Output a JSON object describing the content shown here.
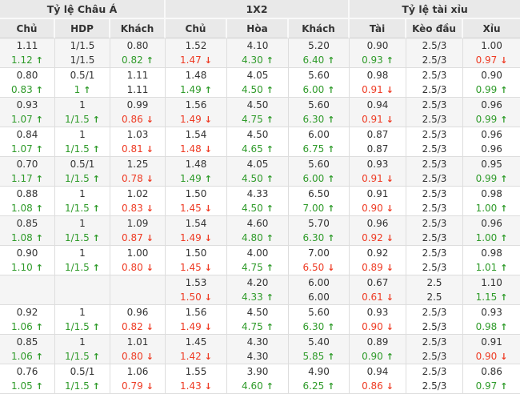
{
  "colors": {
    "up_green": "#2f9b2a",
    "down_red": "#ee3b24",
    "text": "#333333",
    "header_bg": "#e9e9e9",
    "alt_row_bg": "#f5f5f5",
    "border": "#dddddd"
  },
  "icons": {
    "up_arrow": "↑",
    "down_arrow": "↓"
  },
  "table": {
    "sections": [
      {
        "title": "Tỷ lệ Châu Á",
        "columns": [
          "Chủ",
          "HDP",
          "Khách"
        ]
      },
      {
        "title": "1X2",
        "columns": [
          "Chủ",
          "Hòa",
          "Khách"
        ]
      },
      {
        "title": "Tỷ lệ tài xỉu",
        "columns": [
          "Tài",
          "Kèo đầu",
          "Xỉu"
        ]
      }
    ],
    "rows": [
      {
        "cells": [
          {
            "top": "1.11",
            "bottom": "1.12",
            "trend": "up"
          },
          {
            "top": "1/1.5",
            "bottom": "1/1.5",
            "trend": "none"
          },
          {
            "top": "0.80",
            "bottom": "0.82",
            "trend": "up"
          },
          {
            "top": "1.52",
            "bottom": "1.47",
            "trend": "down"
          },
          {
            "top": "4.10",
            "bottom": "4.30",
            "trend": "up"
          },
          {
            "top": "5.20",
            "bottom": "6.40",
            "trend": "up"
          },
          {
            "top": "0.90",
            "bottom": "0.93",
            "trend": "up"
          },
          {
            "top": "2.5/3",
            "bottom": "2.5/3",
            "trend": "none"
          },
          {
            "top": "1.00",
            "bottom": "0.97",
            "trend": "down"
          }
        ]
      },
      {
        "cells": [
          {
            "top": "0.80",
            "bottom": "0.83",
            "trend": "up"
          },
          {
            "top": "0.5/1",
            "bottom": "1",
            "trend": "up"
          },
          {
            "top": "1.11",
            "bottom": "1.11",
            "trend": "none"
          },
          {
            "top": "1.48",
            "bottom": "1.49",
            "trend": "up"
          },
          {
            "top": "4.05",
            "bottom": "4.50",
            "trend": "up"
          },
          {
            "top": "5.60",
            "bottom": "6.00",
            "trend": "up"
          },
          {
            "top": "0.98",
            "bottom": "0.91",
            "trend": "down"
          },
          {
            "top": "2.5/3",
            "bottom": "2.5/3",
            "trend": "none"
          },
          {
            "top": "0.90",
            "bottom": "0.99",
            "trend": "up"
          }
        ]
      },
      {
        "cells": [
          {
            "top": "0.93",
            "bottom": "1.07",
            "trend": "up"
          },
          {
            "top": "1",
            "bottom": "1/1.5",
            "trend": "up"
          },
          {
            "top": "0.99",
            "bottom": "0.86",
            "trend": "down"
          },
          {
            "top": "1.56",
            "bottom": "1.49",
            "trend": "down"
          },
          {
            "top": "4.50",
            "bottom": "4.75",
            "trend": "up"
          },
          {
            "top": "5.60",
            "bottom": "6.30",
            "trend": "up"
          },
          {
            "top": "0.94",
            "bottom": "0.91",
            "trend": "down"
          },
          {
            "top": "2.5/3",
            "bottom": "2.5/3",
            "trend": "none"
          },
          {
            "top": "0.96",
            "bottom": "0.99",
            "trend": "up"
          }
        ]
      },
      {
        "cells": [
          {
            "top": "0.84",
            "bottom": "1.07",
            "trend": "up"
          },
          {
            "top": "1",
            "bottom": "1/1.5",
            "trend": "up"
          },
          {
            "top": "1.03",
            "bottom": "0.81",
            "trend": "down"
          },
          {
            "top": "1.54",
            "bottom": "1.48",
            "trend": "down"
          },
          {
            "top": "4.50",
            "bottom": "4.65",
            "trend": "up"
          },
          {
            "top": "6.00",
            "bottom": "6.75",
            "trend": "up"
          },
          {
            "top": "0.87",
            "bottom": "0.87",
            "trend": "none"
          },
          {
            "top": "2.5/3",
            "bottom": "2.5/3",
            "trend": "none"
          },
          {
            "top": "0.96",
            "bottom": "0.96",
            "trend": "none"
          }
        ]
      },
      {
        "cells": [
          {
            "top": "0.70",
            "bottom": "1.17",
            "trend": "up"
          },
          {
            "top": "0.5/1",
            "bottom": "1/1.5",
            "trend": "up"
          },
          {
            "top": "1.25",
            "bottom": "0.78",
            "trend": "down"
          },
          {
            "top": "1.48",
            "bottom": "1.49",
            "trend": "up"
          },
          {
            "top": "4.05",
            "bottom": "4.50",
            "trend": "up"
          },
          {
            "top": "5.60",
            "bottom": "6.00",
            "trend": "up"
          },
          {
            "top": "0.93",
            "bottom": "0.91",
            "trend": "down"
          },
          {
            "top": "2.5/3",
            "bottom": "2.5/3",
            "trend": "none"
          },
          {
            "top": "0.95",
            "bottom": "0.99",
            "trend": "up"
          }
        ]
      },
      {
        "cells": [
          {
            "top": "0.88",
            "bottom": "1.08",
            "trend": "up"
          },
          {
            "top": "1",
            "bottom": "1/1.5",
            "trend": "up"
          },
          {
            "top": "1.02",
            "bottom": "0.83",
            "trend": "down"
          },
          {
            "top": "1.50",
            "bottom": "1.45",
            "trend": "down"
          },
          {
            "top": "4.33",
            "bottom": "4.50",
            "trend": "up"
          },
          {
            "top": "6.50",
            "bottom": "7.00",
            "trend": "up"
          },
          {
            "top": "0.91",
            "bottom": "0.90",
            "trend": "down"
          },
          {
            "top": "2.5/3",
            "bottom": "2.5/3",
            "trend": "none"
          },
          {
            "top": "0.98",
            "bottom": "1.00",
            "trend": "up"
          }
        ]
      },
      {
        "cells": [
          {
            "top": "0.85",
            "bottom": "1.08",
            "trend": "up"
          },
          {
            "top": "1",
            "bottom": "1/1.5",
            "trend": "up"
          },
          {
            "top": "1.09",
            "bottom": "0.87",
            "trend": "down"
          },
          {
            "top": "1.54",
            "bottom": "1.49",
            "trend": "down"
          },
          {
            "top": "4.60",
            "bottom": "4.80",
            "trend": "up"
          },
          {
            "top": "5.70",
            "bottom": "6.30",
            "trend": "up"
          },
          {
            "top": "0.96",
            "bottom": "0.92",
            "trend": "down"
          },
          {
            "top": "2.5/3",
            "bottom": "2.5/3",
            "trend": "none"
          },
          {
            "top": "0.96",
            "bottom": "1.00",
            "trend": "up"
          }
        ]
      },
      {
        "cells": [
          {
            "top": "0.90",
            "bottom": "1.10",
            "trend": "up"
          },
          {
            "top": "1",
            "bottom": "1/1.5",
            "trend": "up"
          },
          {
            "top": "1.00",
            "bottom": "0.80",
            "trend": "down"
          },
          {
            "top": "1.50",
            "bottom": "1.45",
            "trend": "down"
          },
          {
            "top": "4.00",
            "bottom": "4.75",
            "trend": "up"
          },
          {
            "top": "7.00",
            "bottom": "6.50",
            "trend": "down"
          },
          {
            "top": "0.92",
            "bottom": "0.89",
            "trend": "down"
          },
          {
            "top": "2.5/3",
            "bottom": "2.5/3",
            "trend": "none"
          },
          {
            "top": "0.98",
            "bottom": "1.01",
            "trend": "up"
          }
        ]
      },
      {
        "cells": [
          {
            "top": "",
            "bottom": "",
            "trend": "none"
          },
          {
            "top": "",
            "bottom": "",
            "trend": "none"
          },
          {
            "top": "",
            "bottom": "",
            "trend": "none"
          },
          {
            "top": "1.53",
            "bottom": "1.50",
            "trend": "down"
          },
          {
            "top": "4.20",
            "bottom": "4.33",
            "trend": "up"
          },
          {
            "top": "6.00",
            "bottom": "6.00",
            "trend": "none"
          },
          {
            "top": "0.67",
            "bottom": "0.61",
            "trend": "down"
          },
          {
            "top": "2.5",
            "bottom": "2.5",
            "trend": "none"
          },
          {
            "top": "1.10",
            "bottom": "1.15",
            "trend": "up"
          }
        ]
      },
      {
        "cells": [
          {
            "top": "0.92",
            "bottom": "1.06",
            "trend": "up"
          },
          {
            "top": "1",
            "bottom": "1/1.5",
            "trend": "up"
          },
          {
            "top": "0.96",
            "bottom": "0.82",
            "trend": "down"
          },
          {
            "top": "1.56",
            "bottom": "1.49",
            "trend": "down"
          },
          {
            "top": "4.50",
            "bottom": "4.75",
            "trend": "up"
          },
          {
            "top": "5.60",
            "bottom": "6.30",
            "trend": "up"
          },
          {
            "top": "0.93",
            "bottom": "0.90",
            "trend": "down"
          },
          {
            "top": "2.5/3",
            "bottom": "2.5/3",
            "trend": "none"
          },
          {
            "top": "0.93",
            "bottom": "0.98",
            "trend": "up"
          }
        ]
      },
      {
        "cells": [
          {
            "top": "0.85",
            "bottom": "1.06",
            "trend": "up"
          },
          {
            "top": "1",
            "bottom": "1/1.5",
            "trend": "up"
          },
          {
            "top": "1.01",
            "bottom": "0.80",
            "trend": "down"
          },
          {
            "top": "1.45",
            "bottom": "1.42",
            "trend": "down"
          },
          {
            "top": "4.30",
            "bottom": "4.30",
            "trend": "none"
          },
          {
            "top": "5.40",
            "bottom": "5.85",
            "trend": "up"
          },
          {
            "top": "0.89",
            "bottom": "0.90",
            "trend": "up"
          },
          {
            "top": "2.5/3",
            "bottom": "2.5/3",
            "trend": "none"
          },
          {
            "top": "0.91",
            "bottom": "0.90",
            "trend": "down"
          }
        ]
      },
      {
        "cells": [
          {
            "top": "0.76",
            "bottom": "1.05",
            "trend": "up"
          },
          {
            "top": "0.5/1",
            "bottom": "1/1.5",
            "trend": "up"
          },
          {
            "top": "1.06",
            "bottom": "0.79",
            "trend": "down"
          },
          {
            "top": "1.55",
            "bottom": "1.43",
            "trend": "down"
          },
          {
            "top": "3.90",
            "bottom": "4.60",
            "trend": "up"
          },
          {
            "top": "4.90",
            "bottom": "6.25",
            "trend": "up"
          },
          {
            "top": "0.94",
            "bottom": "0.86",
            "trend": "down"
          },
          {
            "top": "2.5/3",
            "bottom": "2.5/3",
            "trend": "none"
          },
          {
            "top": "0.86",
            "bottom": "0.97",
            "trend": "up"
          }
        ]
      }
    ]
  }
}
